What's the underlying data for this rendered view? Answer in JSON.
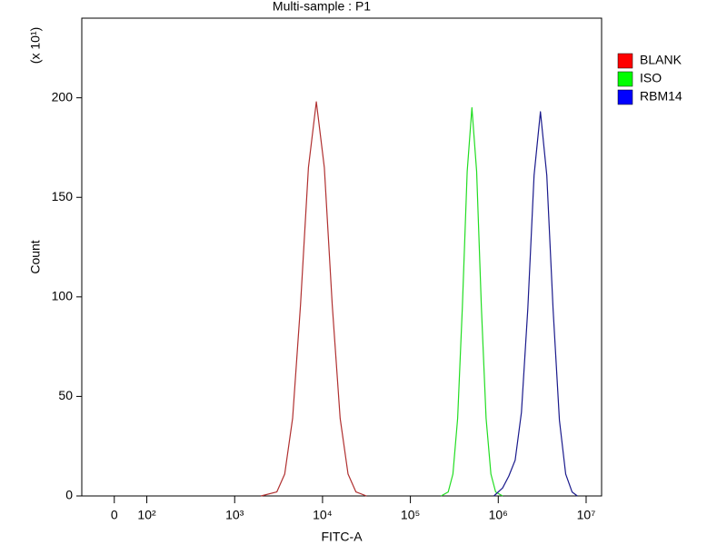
{
  "chart_data": {
    "type": "line",
    "title": "Multi-sample : P1",
    "xlabel": "FITC-A",
    "ylabel": "Count",
    "y_multiplier": "(x 10¹)",
    "xscale": "biexponential",
    "xlim": [
      -100,
      15000000
    ],
    "xticks": [
      0,
      {
        "value": 100,
        "label": "10²"
      },
      {
        "value": 1000,
        "label": "10³"
      },
      {
        "value": 10000,
        "label": "10⁴"
      },
      {
        "value": 100000,
        "label": "10⁵"
      },
      {
        "value": 1000000,
        "label": "10⁶"
      },
      {
        "value": 10000000,
        "label": "10⁷"
      }
    ],
    "ylim": [
      0,
      240
    ],
    "yticks": [
      0,
      50,
      100,
      150,
      200
    ],
    "legend": "right",
    "series": [
      {
        "name": "BLANK",
        "color": "#b03030",
        "legend_color": "#ff0000",
        "x": [
          1995,
          3020,
          3715,
          4571,
          5623,
          6918,
          8511,
          10471,
          12882,
          15849,
          19498,
          23988,
          31623
        ],
        "values": [
          0,
          2,
          11,
          39,
          96,
          165,
          198,
          165,
          96,
          39,
          11,
          2,
          0
        ]
      },
      {
        "name": "ISO",
        "color": "#22dd22",
        "legend_color": "#00ff00",
        "x": [
          223872,
          269153,
          304789,
          345144,
          390841,
          442588,
          501187,
          567545,
          642688,
          727780,
          824138,
          933254,
          1122018
        ],
        "values": [
          0,
          2,
          11,
          39,
          95,
          163,
          195,
          163,
          95,
          39,
          11,
          2,
          0
        ]
      },
      {
        "name": "RBM14",
        "color": "#1a1a8c",
        "legend_color": "#0000ff",
        "x": [
          891251,
          1122018,
          1318257,
          1555966,
          1836538,
          2167704,
          2558586,
          3019952,
          3564511,
          4207266,
          4965923,
          5861382,
          6918310,
          7943282
        ],
        "values": [
          0,
          4,
          10,
          18,
          42,
          94,
          161,
          193,
          161,
          94,
          38,
          11,
          2,
          0
        ]
      }
    ]
  }
}
